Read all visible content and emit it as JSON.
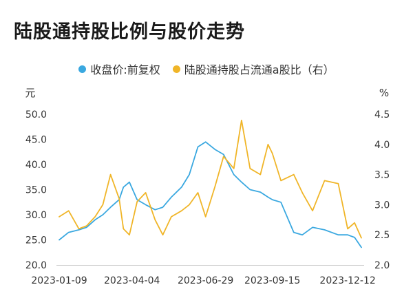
{
  "title": "陆股通持股比例与股价走势",
  "colors": {
    "price": "#3aa8e0",
    "ratio": "#f0b528",
    "axis": "#cfcfcf",
    "text": "#333333"
  },
  "chart_data": {
    "type": "line",
    "title": "陆股通持股比例与股价走势",
    "y_left": {
      "unit": "元",
      "range": [
        20,
        50
      ],
      "ticks": [
        "50.0",
        "45.0",
        "40.0",
        "35.0",
        "30.0",
        "25.0",
        "20.0"
      ],
      "tick_values": [
        50,
        45,
        40,
        35,
        30,
        25,
        20
      ]
    },
    "y_right": {
      "unit": "%",
      "range": [
        2.0,
        4.5
      ],
      "ticks": [
        "4.5",
        "4.0",
        "3.5",
        "3.0",
        "2.5",
        "2.0"
      ],
      "tick_values": [
        4.5,
        4.0,
        3.5,
        3.0,
        2.5,
        2.0
      ]
    },
    "x_ticks": [
      "2023-01-09",
      "2023-04-04",
      "2023-06-29",
      "2023-09-15",
      "2023-12-12"
    ],
    "x_range": [
      "2023-01-09",
      "2023-12-28"
    ],
    "x_tick_dates": [
      "2023-01-09",
      "2023-04-04",
      "2023-06-29",
      "2023-09-15",
      "2023-12-12"
    ],
    "grid": false,
    "legend_position": "top-center",
    "series": [
      {
        "name": "收盘价:前复权",
        "axis": "left",
        "color": "#3aa8e0",
        "x": [
          "2023-01-09",
          "2023-01-20",
          "2023-02-01",
          "2023-02-10",
          "2023-02-20",
          "2023-03-01",
          "2023-03-10",
          "2023-03-20",
          "2023-03-25",
          "2023-04-01",
          "2023-04-10",
          "2023-04-20",
          "2023-05-01",
          "2023-05-10",
          "2023-05-20",
          "2023-06-01",
          "2023-06-10",
          "2023-06-20",
          "2023-06-29",
          "2023-07-10",
          "2023-07-20",
          "2023-08-01",
          "2023-08-10",
          "2023-08-20",
          "2023-09-01",
          "2023-09-10",
          "2023-09-15",
          "2023-09-25",
          "2023-10-10",
          "2023-10-20",
          "2023-11-01",
          "2023-11-15",
          "2023-12-01",
          "2023-12-12",
          "2023-12-20",
          "2023-12-28"
        ],
        "y": [
          25.0,
          26.5,
          27.0,
          27.5,
          29.0,
          30.0,
          31.5,
          33.0,
          35.5,
          36.5,
          33.0,
          32.0,
          31.0,
          31.5,
          33.5,
          35.5,
          38.0,
          43.5,
          44.5,
          43.0,
          42.0,
          38.0,
          36.5,
          35.0,
          34.5,
          33.5,
          33.0,
          32.5,
          26.5,
          26.0,
          27.5,
          27.0,
          26.0,
          26.0,
          25.5,
          23.5
        ]
      },
      {
        "name": "陆股通持股占流通a股比（右）",
        "axis": "right",
        "color": "#f0b528",
        "x": [
          "2023-01-09",
          "2023-01-20",
          "2023-02-01",
          "2023-02-10",
          "2023-02-20",
          "2023-03-01",
          "2023-03-10",
          "2023-03-20",
          "2023-03-25",
          "2023-04-01",
          "2023-04-10",
          "2023-04-20",
          "2023-05-01",
          "2023-05-10",
          "2023-05-20",
          "2023-06-01",
          "2023-06-10",
          "2023-06-20",
          "2023-06-29",
          "2023-07-10",
          "2023-07-20",
          "2023-08-01",
          "2023-08-10",
          "2023-08-20",
          "2023-09-01",
          "2023-09-10",
          "2023-09-15",
          "2023-09-25",
          "2023-10-10",
          "2023-10-20",
          "2023-11-01",
          "2023-11-15",
          "2023-12-01",
          "2023-12-12",
          "2023-12-20",
          "2023-12-28"
        ],
        "y": [
          2.8,
          2.9,
          2.6,
          2.65,
          2.8,
          3.0,
          3.5,
          3.1,
          2.6,
          2.5,
          3.05,
          3.2,
          2.75,
          2.5,
          2.8,
          2.9,
          3.0,
          3.2,
          2.8,
          3.3,
          3.8,
          3.6,
          4.4,
          3.6,
          3.5,
          4.0,
          3.85,
          3.4,
          3.5,
          3.2,
          2.9,
          3.4,
          3.35,
          2.6,
          2.7,
          2.45
        ]
      }
    ]
  },
  "legend": [
    {
      "label": "收盘价:前复权",
      "color": "#3aa8e0"
    },
    {
      "label": "陆股通持股占流通a股比（右）",
      "color": "#f0b528"
    }
  ]
}
